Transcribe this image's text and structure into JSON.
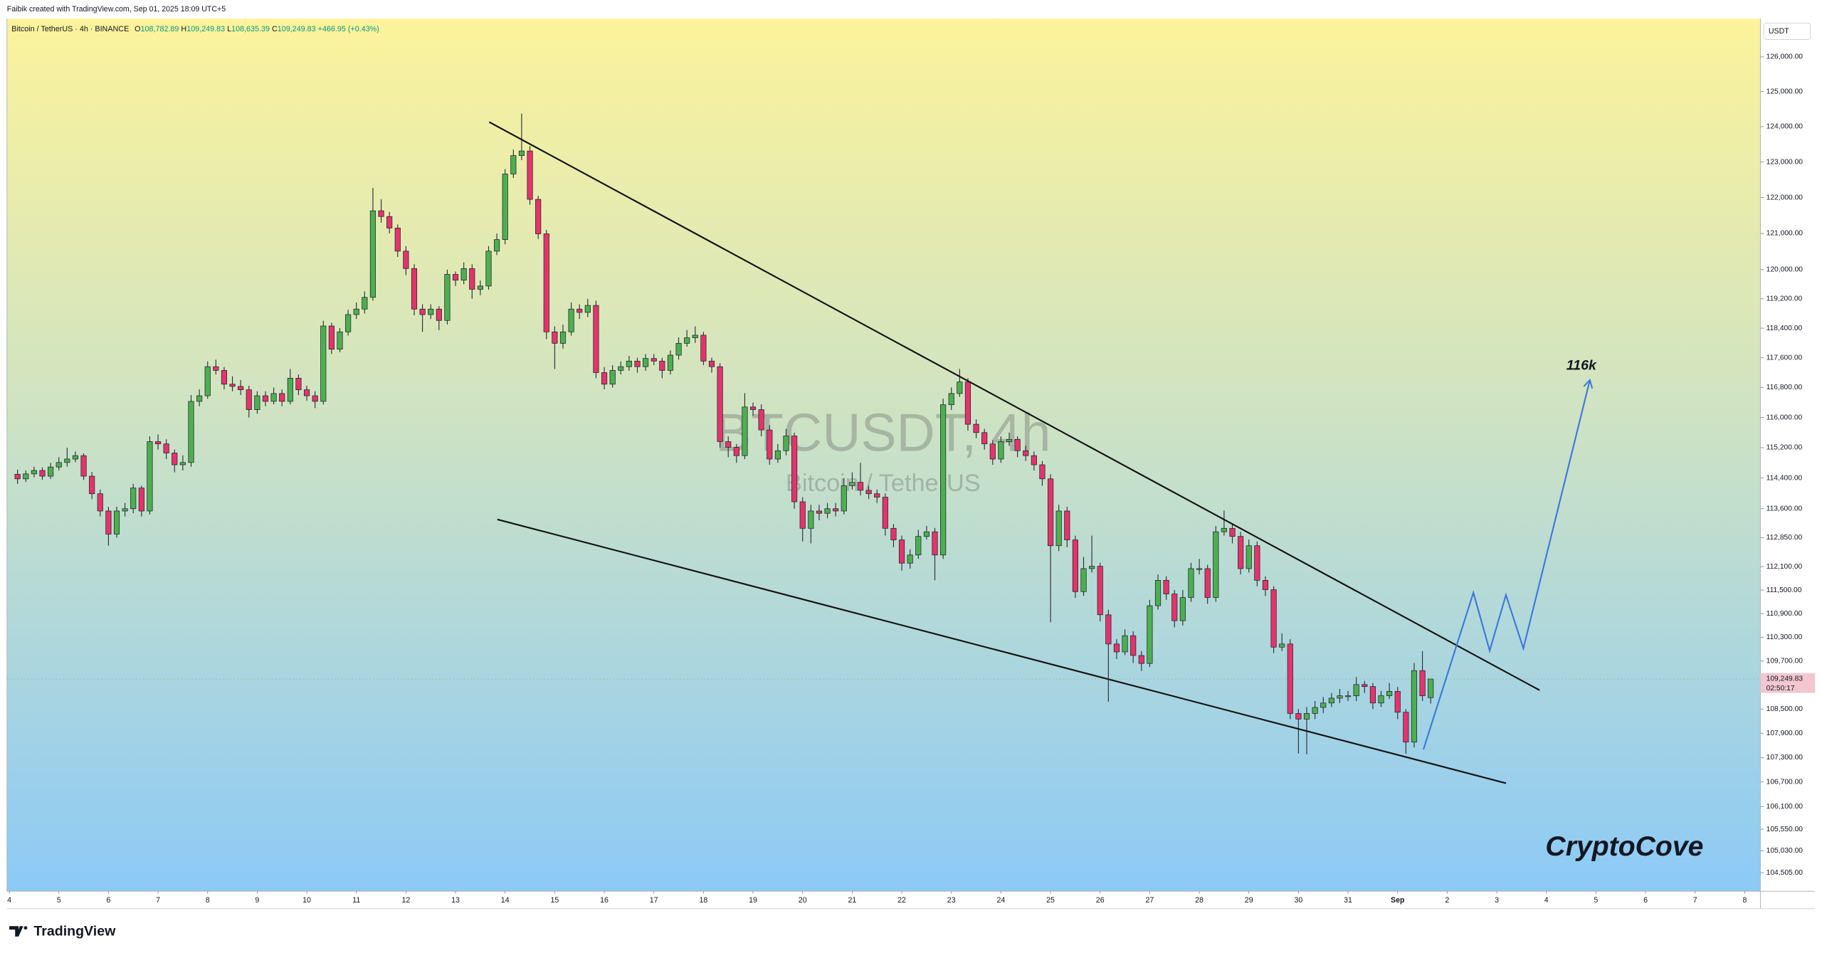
{
  "attribution": "Faibik created with TradingView.com, Sep 01, 2025 18:09 UTC+5",
  "logo": "TradingView",
  "chart_data": {
    "type": "candlestick",
    "header": {
      "symbol": "Bitcoin / TetherUS · 4h · BINANCE",
      "fields": [
        {
          "key": "O",
          "value": "108,782.89"
        },
        {
          "key": "H",
          "value": "109,249.83"
        },
        {
          "key": "L",
          "value": "108,635.39"
        },
        {
          "key": "C",
          "value": "109,249.83"
        }
      ],
      "change": "+466.95 (+0.43%)"
    },
    "watermark": {
      "title": "BTCUSDT, 4h",
      "subtitle": "Bitcoin / TetherUS"
    },
    "currency": "USDT",
    "price_label": "109,249.83",
    "countdown": "02:50:17",
    "annotations": [
      "116k",
      "CryptoCove"
    ],
    "up_color": "#4caf50",
    "down_color": "#e5336b",
    "log_scale": true,
    "xlim": [
      -1.28,
      210.9
    ],
    "xticks": [
      {
        "value": -1,
        "label": "4"
      },
      {
        "value": 5,
        "label": "5"
      },
      {
        "value": 11,
        "label": "6"
      },
      {
        "value": 17,
        "label": "7"
      },
      {
        "value": 23,
        "label": "8"
      },
      {
        "value": 29,
        "label": "9"
      },
      {
        "value": 35,
        "label": "10"
      },
      {
        "value": 41,
        "label": "11"
      },
      {
        "value": 47,
        "label": "12"
      },
      {
        "value": 53,
        "label": "13"
      },
      {
        "value": 59,
        "label": "14"
      },
      {
        "value": 65,
        "label": "15"
      },
      {
        "value": 71,
        "label": "16"
      },
      {
        "value": 77,
        "label": "17"
      },
      {
        "value": 83,
        "label": "18"
      },
      {
        "value": 89,
        "label": "19"
      },
      {
        "value": 95,
        "label": "20"
      },
      {
        "value": 101,
        "label": "21"
      },
      {
        "value": 107,
        "label": "22"
      },
      {
        "value": 113,
        "label": "23"
      },
      {
        "value": 119,
        "label": "24"
      },
      {
        "value": 125,
        "label": "25"
      },
      {
        "value": 131,
        "label": "26"
      },
      {
        "value": 137,
        "label": "27"
      },
      {
        "value": 143,
        "label": "28"
      },
      {
        "value": 149,
        "label": "29"
      },
      {
        "value": 155,
        "label": "30"
      },
      {
        "value": 161,
        "label": "31"
      },
      {
        "value": 167,
        "label": "Sep"
      },
      {
        "value": 173,
        "label": "2"
      },
      {
        "value": 179,
        "label": "3"
      },
      {
        "value": 185,
        "label": "4"
      },
      {
        "value": 191,
        "label": "5"
      },
      {
        "value": 197,
        "label": "6"
      },
      {
        "value": 203,
        "label": "7"
      },
      {
        "value": 209,
        "label": "8"
      }
    ],
    "ylim": [
      104060,
      127110
    ],
    "yticks": [
      {
        "value": 126000,
        "label": "126,000.00"
      },
      {
        "value": 125000,
        "label": "125,000.00"
      },
      {
        "value": 124000,
        "label": "124,000.00"
      },
      {
        "value": 123000,
        "label": "123,000.00"
      },
      {
        "value": 122000,
        "label": "122,000.00"
      },
      {
        "value": 121000,
        "label": "121,000.00"
      },
      {
        "value": 120000,
        "label": "120,000.00"
      },
      {
        "value": 119200,
        "label": "119,200.00"
      },
      {
        "value": 118400,
        "label": "118,400.00"
      },
      {
        "value": 117600,
        "label": "117,600.00"
      },
      {
        "value": 116800,
        "label": "116,800.00"
      },
      {
        "value": 116000,
        "label": "116,000.00"
      },
      {
        "value": 115200,
        "label": "115,200.00"
      },
      {
        "value": 114400,
        "label": "114,400.00"
      },
      {
        "value": 113600,
        "label": "113,600.00"
      },
      {
        "value": 112850,
        "label": "112,850.00"
      },
      {
        "value": 112100,
        "label": "112,100.00"
      },
      {
        "value": 111500,
        "label": "111,500.00"
      },
      {
        "value": 110900,
        "label": "110,900.00"
      },
      {
        "value": 110300,
        "label": "110,300.00"
      },
      {
        "value": 109700,
        "label": "109,700.00"
      },
      {
        "value": 108500,
        "label": "108,500.00"
      },
      {
        "value": 107900,
        "label": "107,900.00"
      },
      {
        "value": 107300,
        "label": "107,300.00"
      },
      {
        "value": 106700,
        "label": "106,700.00"
      },
      {
        "value": 106100,
        "label": "106,100.00"
      },
      {
        "value": 105550,
        "label": "105,550.00"
      },
      {
        "value": 105030,
        "label": "105,030.00"
      },
      {
        "value": 104505,
        "label": "104,505.00"
      }
    ],
    "candles": [
      [
        114500,
        114620,
        114250,
        114380
      ],
      [
        114380,
        114600,
        114300,
        114510
      ],
      [
        114510,
        114700,
        114420,
        114600
      ],
      [
        114600,
        114680,
        114350,
        114450
      ],
      [
        114450,
        114800,
        114380,
        114690
      ],
      [
        114690,
        114950,
        114600,
        114810
      ],
      [
        114810,
        115200,
        114700,
        114900
      ],
      [
        114900,
        115100,
        114820,
        114990
      ],
      [
        114990,
        115050,
        114350,
        114450
      ],
      [
        114450,
        114560,
        113850,
        113990
      ],
      [
        113990,
        114100,
        113400,
        113540
      ],
      [
        113540,
        113650,
        112640,
        112940
      ],
      [
        112940,
        113650,
        112850,
        113540
      ],
      [
        113540,
        113750,
        113400,
        113600
      ],
      [
        113600,
        114250,
        113480,
        114140
      ],
      [
        114140,
        114200,
        113400,
        113540
      ],
      [
        113540,
        115500,
        113450,
        115360
      ],
      [
        115360,
        115550,
        115150,
        115300
      ],
      [
        115300,
        115420,
        114900,
        115060
      ],
      [
        115060,
        115150,
        114550,
        114750
      ],
      [
        114750,
        115000,
        114600,
        114810
      ],
      [
        114810,
        116600,
        114700,
        116430
      ],
      [
        116430,
        116750,
        116300,
        116580
      ],
      [
        116580,
        117500,
        116500,
        117360
      ],
      [
        117360,
        117550,
        117150,
        117260
      ],
      [
        117260,
        117350,
        116750,
        116890
      ],
      [
        116890,
        117100,
        116700,
        116830
      ],
      [
        116830,
        117000,
        116600,
        116740
      ],
      [
        116740,
        116850,
        116000,
        116210
      ],
      [
        116210,
        116700,
        116100,
        116580
      ],
      [
        116580,
        116700,
        116300,
        116430
      ],
      [
        116430,
        116800,
        116350,
        116640
      ],
      [
        116640,
        116750,
        116300,
        116430
      ],
      [
        116430,
        117300,
        116350,
        117050
      ],
      [
        117050,
        117150,
        116600,
        116740
      ],
      [
        116740,
        116850,
        116450,
        116580
      ],
      [
        116580,
        116700,
        116250,
        116430
      ],
      [
        116430,
        118600,
        116350,
        118460
      ],
      [
        118460,
        118550,
        117700,
        117830
      ],
      [
        117830,
        118400,
        117750,
        118300
      ],
      [
        118300,
        118900,
        118200,
        118770
      ],
      [
        118770,
        119100,
        118650,
        118920
      ],
      [
        118920,
        119400,
        118800,
        119240
      ],
      [
        119240,
        122270,
        119150,
        121630
      ],
      [
        121630,
        121950,
        121300,
        121470
      ],
      [
        121470,
        121600,
        121000,
        121150
      ],
      [
        121150,
        121250,
        120350,
        120510
      ],
      [
        120510,
        120650,
        119850,
        120030
      ],
      [
        120030,
        120150,
        118750,
        118920
      ],
      [
        118920,
        119050,
        118300,
        118770
      ],
      [
        118770,
        119050,
        118650,
        118920
      ],
      [
        118920,
        119000,
        118350,
        118610
      ],
      [
        118610,
        120000,
        118500,
        119870
      ],
      [
        119870,
        119950,
        119550,
        119710
      ],
      [
        119710,
        120200,
        119600,
        120030
      ],
      [
        120030,
        120150,
        119200,
        119460
      ],
      [
        119460,
        119700,
        119300,
        119550
      ],
      [
        119550,
        120650,
        119450,
        120510
      ],
      [
        120510,
        121000,
        120400,
        120830
      ],
      [
        120830,
        122800,
        120700,
        122660
      ],
      [
        122660,
        123350,
        122550,
        123180
      ],
      [
        123180,
        124370,
        123050,
        123310
      ],
      [
        123310,
        123450,
        121800,
        121950
      ],
      [
        121950,
        122050,
        120850,
        120990
      ],
      [
        120990,
        121100,
        118100,
        118300
      ],
      [
        118300,
        118450,
        117300,
        117990
      ],
      [
        117990,
        118500,
        117850,
        118300
      ],
      [
        118300,
        119100,
        118200,
        118920
      ],
      [
        118920,
        119050,
        118650,
        118830
      ],
      [
        118830,
        119200,
        118700,
        119020
      ],
      [
        119020,
        119150,
        117050,
        117200
      ],
      [
        117200,
        117350,
        116750,
        116890
      ],
      [
        116890,
        117400,
        116800,
        117260
      ],
      [
        117260,
        117500,
        117150,
        117360
      ],
      [
        117360,
        117650,
        117250,
        117510
      ],
      [
        117510,
        117600,
        117200,
        117360
      ],
      [
        117360,
        117700,
        117250,
        117580
      ],
      [
        117580,
        117700,
        117400,
        117510
      ],
      [
        117510,
        117600,
        117050,
        117260
      ],
      [
        117260,
        117800,
        117150,
        117670
      ],
      [
        117670,
        118150,
        117550,
        117990
      ],
      [
        117990,
        118350,
        117900,
        118140
      ],
      [
        118140,
        118450,
        118000,
        118210
      ],
      [
        118210,
        118300,
        117400,
        117510
      ],
      [
        117510,
        117600,
        117200,
        117360
      ],
      [
        117360,
        117450,
        115200,
        115360
      ],
      [
        115360,
        115500,
        114950,
        115210
      ],
      [
        115210,
        115300,
        114800,
        114990
      ],
      [
        114990,
        116650,
        114900,
        116280
      ],
      [
        116280,
        116400,
        116050,
        116210
      ],
      [
        116210,
        116350,
        115500,
        115670
      ],
      [
        115670,
        115800,
        114750,
        114900
      ],
      [
        114900,
        115300,
        114800,
        115120
      ],
      [
        115120,
        115700,
        115000,
        115510
      ],
      [
        115510,
        115600,
        113600,
        113780
      ],
      [
        113780,
        113900,
        112750,
        113090
      ],
      [
        113090,
        113700,
        112700,
        113540
      ],
      [
        113540,
        113700,
        113300,
        113480
      ],
      [
        113480,
        113750,
        113350,
        113600
      ],
      [
        113600,
        113750,
        113400,
        113540
      ],
      [
        113540,
        114400,
        113450,
        114200
      ],
      [
        114200,
        114550,
        114100,
        114290
      ],
      [
        114290,
        114800,
        113950,
        114080
      ],
      [
        114080,
        114200,
        113850,
        113990
      ],
      [
        113990,
        114100,
        113750,
        113900
      ],
      [
        113900,
        114000,
        112900,
        113090
      ],
      [
        113090,
        113200,
        112600,
        112790
      ],
      [
        112790,
        112900,
        112000,
        112190
      ],
      [
        112190,
        112550,
        112050,
        112400
      ],
      [
        112400,
        113050,
        112300,
        112880
      ],
      [
        112880,
        113150,
        112800,
        113000
      ],
      [
        113000,
        113100,
        111750,
        112400
      ],
      [
        112400,
        116500,
        112300,
        116340
      ],
      [
        116340,
        116800,
        116200,
        116640
      ],
      [
        116640,
        117300,
        116550,
        116950
      ],
      [
        116950,
        117050,
        115650,
        115820
      ],
      [
        115820,
        115950,
        115450,
        115600
      ],
      [
        115600,
        115700,
        115150,
        115300
      ],
      [
        115300,
        115400,
        114750,
        114900
      ],
      [
        114900,
        115500,
        114800,
        115360
      ],
      [
        115360,
        115600,
        115250,
        115420
      ],
      [
        115420,
        115500,
        114950,
        115120
      ],
      [
        115120,
        115250,
        114850,
        114990
      ],
      [
        114990,
        115100,
        114600,
        114750
      ],
      [
        114750,
        114850,
        114200,
        114380
      ],
      [
        114380,
        114500,
        110680,
        112640
      ],
      [
        112640,
        113700,
        112500,
        113540
      ],
      [
        113540,
        113650,
        112600,
        112790
      ],
      [
        112790,
        112900,
        111300,
        111460
      ],
      [
        111460,
        112350,
        111350,
        112050
      ],
      [
        112050,
        112900,
        111950,
        112110
      ],
      [
        112110,
        112200,
        110700,
        110870
      ],
      [
        110870,
        111000,
        108680,
        110130
      ],
      [
        110130,
        110250,
        109750,
        109930
      ],
      [
        109930,
        110500,
        109850,
        110340
      ],
      [
        110340,
        110450,
        109650,
        109840
      ],
      [
        109840,
        109950,
        109450,
        109640
      ],
      [
        109640,
        111250,
        109550,
        111100
      ],
      [
        111100,
        111900,
        111000,
        111750
      ],
      [
        111750,
        111850,
        111250,
        111400
      ],
      [
        111400,
        111500,
        110550,
        110720
      ],
      [
        110720,
        111500,
        110600,
        111310
      ],
      [
        111310,
        112200,
        111200,
        112050
      ],
      [
        112050,
        112300,
        111900,
        112050
      ],
      [
        112050,
        112150,
        111150,
        111310
      ],
      [
        111310,
        113150,
        111200,
        113000
      ],
      [
        113000,
        113550,
        112900,
        113090
      ],
      [
        113090,
        113200,
        112700,
        112880
      ],
      [
        112880,
        113000,
        111900,
        112050
      ],
      [
        112050,
        112800,
        111950,
        112640
      ],
      [
        112640,
        112750,
        111600,
        111750
      ],
      [
        111750,
        111850,
        111350,
        111510
      ],
      [
        111510,
        111600,
        109900,
        110050
      ],
      [
        110050,
        110400,
        109950,
        110130
      ],
      [
        110130,
        110250,
        108250,
        108390
      ],
      [
        108390,
        108500,
        107400,
        108250
      ],
      [
        108250,
        108550,
        107380,
        108390
      ],
      [
        108390,
        108700,
        108250,
        108540
      ],
      [
        108540,
        108800,
        108400,
        108650
      ],
      [
        108650,
        108900,
        108550,
        108770
      ],
      [
        108770,
        109000,
        108650,
        108830
      ],
      [
        108830,
        108950,
        108700,
        108830
      ],
      [
        108830,
        109300,
        108700,
        109110
      ],
      [
        109110,
        109200,
        108900,
        109060
      ],
      [
        109060,
        109150,
        108500,
        108650
      ],
      [
        108650,
        108950,
        108550,
        108830
      ],
      [
        108830,
        109150,
        108750,
        108940
      ],
      [
        108940,
        109050,
        108250,
        108420
      ],
      [
        108420,
        108500,
        107390,
        107680
      ],
      [
        107680,
        109650,
        107550,
        109460
      ],
      [
        109460,
        109950,
        108700,
        108830
      ],
      [
        108782.89,
        109249.83,
        108635.39,
        109249.83
      ]
    ]
  }
}
